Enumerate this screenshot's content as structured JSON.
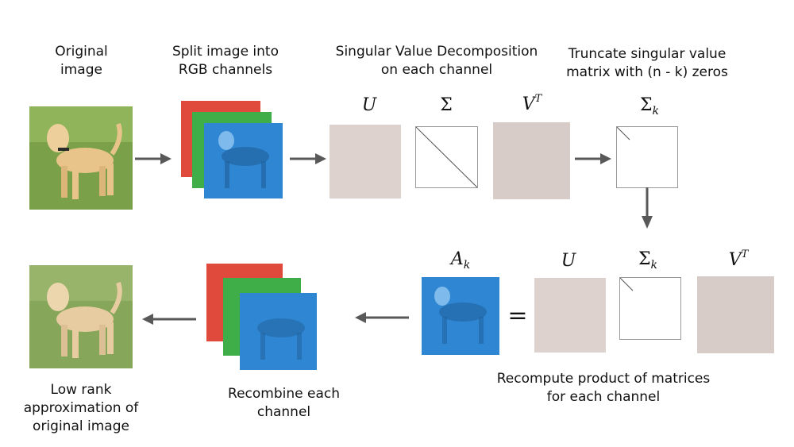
{
  "steps": {
    "original": [
      "Original",
      "image"
    ],
    "split": [
      "Split image into",
      "RGB channels"
    ],
    "svd": [
      "Singular Value Decomposition",
      "on each channel"
    ],
    "truncate": [
      "Truncate singular value",
      "matrix with (n - k) zeros"
    ],
    "recompute": [
      "Recompute product of matrices",
      "for each channel"
    ],
    "recombine": [
      "Recombine each",
      "channel"
    ],
    "lowrank": [
      "Low rank",
      "approximation of",
      "original image"
    ]
  },
  "math": {
    "U": "U",
    "Sigma": "Σ",
    "V": "V",
    "T": "T",
    "k": "k",
    "A": "A",
    "equals": "="
  },
  "colors": {
    "arrow": "#595959",
    "red_channel": "#e04a3c",
    "green_channel": "#3fae49",
    "blue_channel": "#2f86d2",
    "grass": "#7aa04a",
    "dog": "#e8c48a",
    "noise_matrix": "#d8ccc8"
  }
}
